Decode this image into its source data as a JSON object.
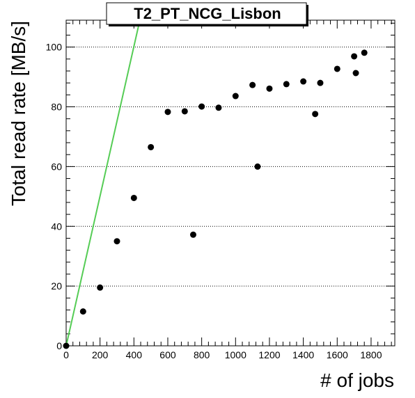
{
  "chart_data": {
    "type": "scatter",
    "title": "T2_PT_NCG_Lisbon",
    "xlabel": "# of jobs",
    "ylabel": "Total read rate [MB/s]",
    "xlim": [
      0,
      1940
    ],
    "ylim": [
      0,
      109
    ],
    "xticks": [
      0,
      200,
      400,
      600,
      800,
      1000,
      1200,
      1400,
      1600,
      1800
    ],
    "yticks": [
      0,
      20,
      40,
      60,
      80,
      100
    ],
    "grid": "horizontal dotted",
    "series": [
      {
        "points": [
          [
            0,
            0
          ],
          [
            100,
            11.5
          ],
          [
            200,
            19.5
          ],
          [
            300,
            35
          ],
          [
            400,
            49.5
          ],
          [
            500,
            66.5
          ],
          [
            600,
            78.3
          ],
          [
            700,
            78.5
          ],
          [
            750,
            37.2
          ],
          [
            800,
            80.1
          ],
          [
            900,
            79.7
          ],
          [
            1000,
            83.6
          ],
          [
            1100,
            87.3
          ],
          [
            1130,
            60
          ],
          [
            1200,
            86.1
          ],
          [
            1300,
            87.6
          ],
          [
            1400,
            88.5
          ],
          [
            1470,
            77.6
          ],
          [
            1500,
            88.0
          ],
          [
            1600,
            92.7
          ],
          [
            1700,
            96.9
          ],
          [
            1710,
            91.3
          ],
          [
            1760,
            98.1
          ]
        ],
        "color": "#000000"
      },
      {
        "line": [
          [
            0,
            0
          ],
          [
            435,
            109
          ]
        ],
        "color": "#55cc55"
      }
    ]
  }
}
